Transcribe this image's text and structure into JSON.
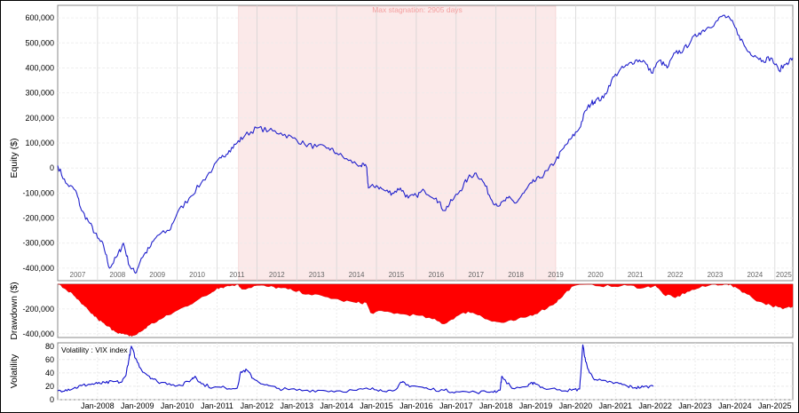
{
  "chart_data": [
    {
      "type": "line",
      "ylabel": "Equity ($)",
      "ylim": [
        -450000,
        650000
      ],
      "yticks": [
        600000,
        500000,
        400000,
        300000,
        200000,
        100000,
        0,
        -100000,
        -200000,
        -300000,
        -400000
      ],
      "ytick_labels": [
        "600,000",
        "500,000",
        "400,000",
        "300,000",
        "200,000",
        "100,000",
        "0",
        "-100,000",
        "-200,000",
        "-300,000",
        "-400,000"
      ],
      "xlim": [
        2007.0,
        2025.45
      ],
      "year_labels": [
        "2007",
        "2008",
        "2009",
        "2010",
        "2011",
        "2012",
        "2013",
        "2014",
        "2015",
        "2016",
        "2017",
        "2018",
        "2019",
        "2020",
        "2021",
        "2022",
        "2023",
        "2024",
        "2025"
      ],
      "stagnation": {
        "label": "Max stagnation: 2905 days",
        "start": 2011.54,
        "end": 2019.5,
        "color": "#fbe9e9"
      },
      "line_color": "#2222cc",
      "grid": true,
      "series": [
        {
          "x": [
            2007.0,
            2007.2,
            2007.45,
            2007.6,
            2007.8,
            2008.0,
            2008.15,
            2008.3,
            2008.5,
            2008.65,
            2008.8,
            2008.95,
            2009.1,
            2009.3,
            2009.5,
            2009.8,
            2010.0,
            2010.3,
            2010.6,
            2010.9,
            2011.1,
            2011.3,
            2011.5,
            2011.7,
            2012.0,
            2012.3,
            2012.6,
            2012.9,
            2013.2,
            2013.5,
            2013.8,
            2014.0,
            2014.3,
            2014.6,
            2014.75,
            2014.8,
            2015.0,
            2015.2,
            2015.4,
            2015.6,
            2015.8,
            2016.0,
            2016.2,
            2016.5,
            2016.7,
            2016.9,
            2017.1,
            2017.3,
            2017.5,
            2017.7,
            2017.9,
            2018.1,
            2018.3,
            2018.5,
            2018.7,
            2018.9,
            2019.1,
            2019.3,
            2019.5,
            2019.7,
            2019.9,
            2020.1,
            2020.25,
            2020.4,
            2020.5,
            2020.7,
            2020.9,
            2021.1,
            2021.3,
            2021.5,
            2021.7,
            2021.9,
            2022.1,
            2022.3,
            2022.5,
            2022.7,
            2022.9,
            2023.1,
            2023.3,
            2023.5,
            2023.7,
            2023.9,
            2024.1,
            2024.3,
            2024.5,
            2024.7,
            2024.9,
            2025.1,
            2025.3,
            2025.45
          ],
          "y": [
            10000,
            -60000,
            -90000,
            -170000,
            -220000,
            -280000,
            -310000,
            -400000,
            -350000,
            -300000,
            -390000,
            -420000,
            -360000,
            -320000,
            -270000,
            -250000,
            -180000,
            -120000,
            -60000,
            0,
            40000,
            70000,
            100000,
            130000,
            160000,
            150000,
            140000,
            120000,
            95000,
            85000,
            80000,
            60000,
            30000,
            10000,
            5000,
            -80000,
            -70000,
            -90000,
            -100000,
            -80000,
            -120000,
            -110000,
            -90000,
            -120000,
            -170000,
            -130000,
            -90000,
            -40000,
            -20000,
            -60000,
            -130000,
            -150000,
            -120000,
            -140000,
            -100000,
            -60000,
            -40000,
            -10000,
            30000,
            80000,
            120000,
            160000,
            230000,
            260000,
            270000,
            280000,
            350000,
            390000,
            410000,
            430000,
            430000,
            380000,
            430000,
            400000,
            460000,
            470000,
            510000,
            540000,
            560000,
            580000,
            610000,
            590000,
            530000,
            470000,
            450000,
            430000,
            440000,
            390000,
            420000,
            440000
          ]
        }
      ]
    },
    {
      "type": "area",
      "ylabel": "Drawdown ($)",
      "ylim": [
        -430000,
        0
      ],
      "yticks": [
        -200000,
        -400000
      ],
      "ytick_labels": [
        "-200,000",
        "-400,000"
      ],
      "fill_color": "#ff0000",
      "x": [
        2007.0,
        2007.2,
        2007.4,
        2007.6,
        2007.8,
        2008.0,
        2008.2,
        2008.4,
        2008.6,
        2008.8,
        2008.95,
        2009.1,
        2009.3,
        2009.6,
        2009.9,
        2010.2,
        2010.5,
        2010.8,
        2011.0,
        2011.2,
        2011.5,
        2011.65,
        2012.0,
        2012.3,
        2012.6,
        2012.9,
        2013.3,
        2013.7,
        2014.1,
        2014.5,
        2014.75,
        2014.85,
        2015.2,
        2015.6,
        2016.0,
        2016.4,
        2016.7,
        2017.0,
        2017.3,
        2017.6,
        2017.9,
        2018.2,
        2018.5,
        2018.8,
        2019.1,
        2019.4,
        2019.6,
        2019.9,
        2020.4,
        2020.9,
        2021.3,
        2021.7,
        2022.0,
        2022.2,
        2022.5,
        2022.8,
        2023.1,
        2023.5,
        2023.8,
        2024.0,
        2024.3,
        2024.6,
        2024.9,
        2025.2,
        2025.45
      ],
      "values": [
        0,
        -40000,
        -90000,
        -160000,
        -220000,
        -280000,
        -330000,
        -370000,
        -400000,
        -420000,
        -410000,
        -380000,
        -330000,
        -280000,
        -230000,
        -180000,
        -130000,
        -80000,
        -30000,
        -20000,
        0,
        -40000,
        -10000,
        -20000,
        -30000,
        -50000,
        -80000,
        -100000,
        -130000,
        -150000,
        -150000,
        -230000,
        -220000,
        -240000,
        -250000,
        -280000,
        -320000,
        -260000,
        -220000,
        -250000,
        -300000,
        -310000,
        -290000,
        -260000,
        -220000,
        -170000,
        -120000,
        -20000,
        0,
        -20000,
        -10000,
        -30000,
        -10000,
        -80000,
        -110000,
        -60000,
        -30000,
        0,
        0,
        -20000,
        -80000,
        -140000,
        -170000,
        -200000,
        -180000
      ]
    },
    {
      "type": "line",
      "ylabel": "Volatility",
      "legend": "Volatility : VIX index",
      "ylim": [
        0,
        85
      ],
      "yticks": [
        0,
        20,
        40,
        60,
        80
      ],
      "line_color": "#1111cc",
      "x": [
        2007.0,
        2007.2,
        2007.4,
        2007.6,
        2007.8,
        2008.0,
        2008.2,
        2008.4,
        2008.6,
        2008.7,
        2008.78,
        2008.85,
        2008.95,
        2009.1,
        2009.3,
        2009.5,
        2009.8,
        2010.1,
        2010.35,
        2010.45,
        2010.6,
        2010.9,
        2011.2,
        2011.5,
        2011.6,
        2011.75,
        2011.9,
        2012.2,
        2012.5,
        2012.8,
        2013.2,
        2013.6,
        2014.0,
        2014.5,
        2014.8,
        2015.1,
        2015.4,
        2015.65,
        2015.75,
        2016.0,
        2016.3,
        2016.7,
        2017.0,
        2017.5,
        2017.9,
        2018.1,
        2018.15,
        2018.4,
        2018.8,
        2018.95,
        2019.2,
        2019.6,
        2019.9,
        2020.1,
        2020.18,
        2020.25,
        2020.35,
        2020.5,
        2020.8,
        2021.1,
        2021.3,
        2021.5,
        2021.7,
        2021.95
      ],
      "values": [
        13,
        15,
        17,
        21,
        23,
        24,
        25,
        27,
        26,
        35,
        58,
        80,
        62,
        45,
        35,
        27,
        24,
        21,
        30,
        35,
        24,
        18,
        18,
        17,
        42,
        44,
        32,
        22,
        17,
        15,
        14,
        14,
        13,
        14,
        16,
        15,
        13,
        26,
        22,
        20,
        16,
        14,
        12,
        11,
        12,
        14,
        35,
        17,
        20,
        26,
        17,
        15,
        14,
        16,
        82,
        57,
        40,
        30,
        26,
        24,
        20,
        18,
        19,
        20
      ]
    }
  ],
  "x_date_labels": [
    "Jan-2008",
    "Jan-2009",
    "Jan-2010",
    "Jan-2011",
    "Jan-2012",
    "Jan-2013",
    "Jan-2014",
    "Jan-2015",
    "Jan-2016",
    "Jan-2017",
    "Jan-2018",
    "Jan-2019",
    "Jan-2020",
    "Jan-2021",
    "Jan-2022",
    "Jan-2023",
    "Jan-2024",
    "Jan-2025"
  ]
}
